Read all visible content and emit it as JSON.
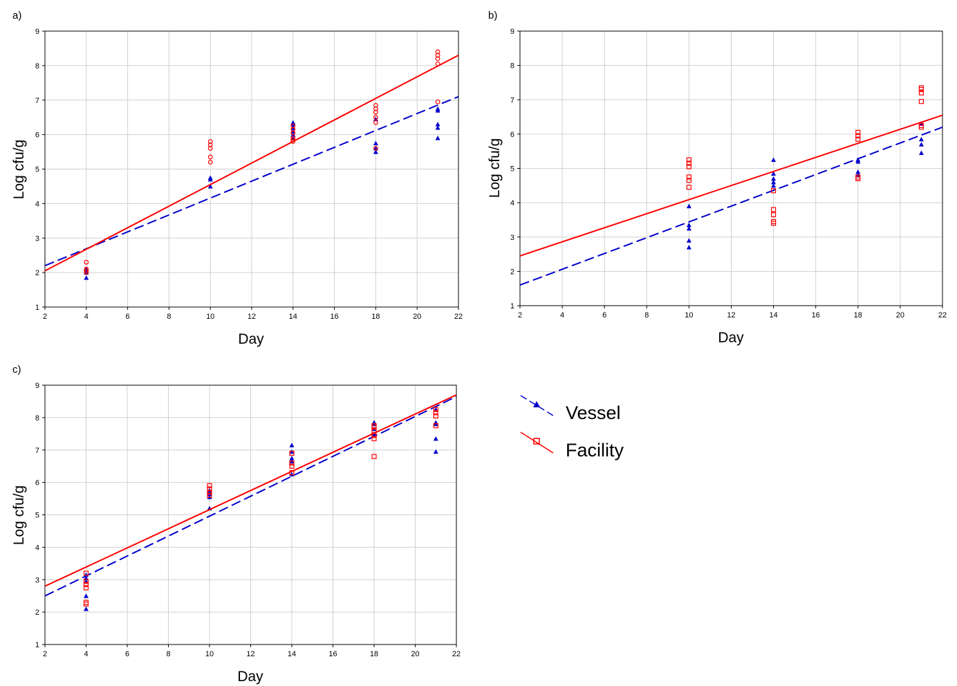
{
  "legend": {
    "vessel": {
      "label": "Vessel",
      "color": "#0000cc"
    },
    "facility": {
      "label": "Facility",
      "color": "#ff0000"
    }
  },
  "chart_data": [
    {
      "type": "scatter",
      "panel_label": "a)",
      "xlabel": "Day",
      "ylabel": "Log cfu/g",
      "xlim": [
        2,
        22
      ],
      "ylim": [
        1,
        9
      ],
      "xticks": [
        2,
        4,
        6,
        8,
        10,
        12,
        14,
        16,
        18,
        20,
        22
      ],
      "yticks": [
        1,
        2,
        3,
        4,
        5,
        6,
        7,
        8,
        9
      ],
      "grid": true,
      "series": [
        {
          "name": "Vessel",
          "marker": "triangle",
          "points": [
            [
              4,
              1.85
            ],
            [
              4,
              2.0
            ],
            [
              4,
              2.05
            ],
            [
              4,
              2.1
            ],
            [
              10,
              4.5
            ],
            [
              10,
              4.7
            ],
            [
              10,
              4.75
            ],
            [
              14,
              5.9
            ],
            [
              14,
              6.0
            ],
            [
              14,
              6.1
            ],
            [
              14,
              6.2
            ],
            [
              14,
              6.3
            ],
            [
              14,
              6.35
            ],
            [
              18,
              5.5
            ],
            [
              18,
              5.6
            ],
            [
              18,
              5.75
            ],
            [
              18,
              6.45
            ],
            [
              21,
              5.9
            ],
            [
              21,
              6.2
            ],
            [
              21,
              6.3
            ],
            [
              21,
              6.7
            ],
            [
              21,
              6.75
            ]
          ],
          "fit": {
            "x": [
              2,
              22
            ],
            "y": [
              2.2,
              7.1
            ]
          }
        },
        {
          "name": "Facility",
          "marker": "circle",
          "points": [
            [
              4,
              2.0
            ],
            [
              4,
              2.05
            ],
            [
              4,
              2.1
            ],
            [
              4,
              2.3
            ],
            [
              10,
              5.2
            ],
            [
              10,
              5.35
            ],
            [
              10,
              5.6
            ],
            [
              10,
              5.7
            ],
            [
              10,
              5.8
            ],
            [
              14,
              5.8
            ],
            [
              14,
              5.85
            ],
            [
              14,
              5.9
            ],
            [
              14,
              6.05
            ],
            [
              14,
              6.15
            ],
            [
              14,
              6.25
            ],
            [
              18,
              5.6
            ],
            [
              18,
              6.35
            ],
            [
              18,
              6.5
            ],
            [
              18,
              6.65
            ],
            [
              18,
              6.75
            ],
            [
              18,
              6.85
            ],
            [
              21,
              6.95
            ],
            [
              21,
              8.05
            ],
            [
              21,
              8.2
            ],
            [
              21,
              8.3
            ],
            [
              21,
              8.4
            ]
          ],
          "fit": {
            "x": [
              2,
              22
            ],
            "y": [
              2.05,
              8.3
            ]
          }
        }
      ]
    },
    {
      "type": "scatter",
      "panel_label": "b)",
      "xlabel": "Day",
      "ylabel": "Log cfu/g",
      "xlim": [
        2,
        22
      ],
      "ylim": [
        1,
        9
      ],
      "xticks": [
        2,
        4,
        6,
        8,
        10,
        12,
        14,
        16,
        18,
        20,
        22
      ],
      "yticks": [
        1,
        2,
        3,
        4,
        5,
        6,
        7,
        8,
        9
      ],
      "grid": true,
      "series": [
        {
          "name": "Vessel",
          "marker": "triangle",
          "points": [
            [
              10,
              2.7
            ],
            [
              10,
              2.9
            ],
            [
              10,
              3.25
            ],
            [
              10,
              3.35
            ],
            [
              10,
              3.9
            ],
            [
              14,
              4.5
            ],
            [
              14,
              4.6
            ],
            [
              14,
              4.7
            ],
            [
              14,
              4.85
            ],
            [
              14,
              5.25
            ],
            [
              18,
              4.8
            ],
            [
              18,
              4.9
            ],
            [
              18,
              5.2
            ],
            [
              18,
              5.25
            ],
            [
              21,
              5.45
            ],
            [
              21,
              5.7
            ],
            [
              21,
              5.85
            ],
            [
              21,
              6.3
            ]
          ],
          "fit": {
            "x": [
              2,
              22
            ],
            "y": [
              1.6,
              6.2
            ]
          }
        },
        {
          "name": "Facility",
          "marker": "square",
          "points": [
            [
              10,
              4.45
            ],
            [
              10,
              4.65
            ],
            [
              10,
              4.75
            ],
            [
              10,
              5.05
            ],
            [
              10,
              5.15
            ],
            [
              10,
              5.25
            ],
            [
              14,
              3.4
            ],
            [
              14,
              3.45
            ],
            [
              14,
              3.65
            ],
            [
              14,
              3.8
            ],
            [
              14,
              4.35
            ],
            [
              18,
              4.7
            ],
            [
              18,
              4.75
            ],
            [
              18,
              5.85
            ],
            [
              18,
              5.95
            ],
            [
              18,
              6.05
            ],
            [
              21,
              6.2
            ],
            [
              21,
              6.25
            ],
            [
              21,
              6.95
            ],
            [
              21,
              7.2
            ],
            [
              21,
              7.3
            ],
            [
              21,
              7.35
            ]
          ],
          "fit": {
            "x": [
              2,
              22
            ],
            "y": [
              2.45,
              6.55
            ]
          }
        }
      ]
    },
    {
      "type": "scatter",
      "panel_label": "c)",
      "xlabel": "Day",
      "ylabel": "Log cfu/g",
      "xlim": [
        2,
        22
      ],
      "ylim": [
        1,
        9
      ],
      "xticks": [
        2,
        4,
        6,
        8,
        10,
        12,
        14,
        16,
        18,
        20,
        22
      ],
      "yticks": [
        1,
        2,
        3,
        4,
        5,
        6,
        7,
        8,
        9
      ],
      "grid": true,
      "series": [
        {
          "name": "Vessel",
          "marker": "triangle",
          "points": [
            [
              4,
              2.1
            ],
            [
              4,
              2.5
            ],
            [
              4,
              2.95
            ],
            [
              4,
              3.05
            ],
            [
              4,
              3.15
            ],
            [
              10,
              5.2
            ],
            [
              10,
              5.55
            ],
            [
              10,
              5.65
            ],
            [
              10,
              5.75
            ],
            [
              14,
              6.25
            ],
            [
              14,
              6.65
            ],
            [
              14,
              6.75
            ],
            [
              14,
              6.95
            ],
            [
              14,
              7.15
            ],
            [
              18,
              7.5
            ],
            [
              18,
              7.65
            ],
            [
              18,
              7.8
            ],
            [
              18,
              7.85
            ],
            [
              21,
              6.95
            ],
            [
              21,
              7.35
            ],
            [
              21,
              7.8
            ],
            [
              21,
              7.85
            ],
            [
              21,
              8.25
            ]
          ],
          "fit": {
            "x": [
              2,
              22
            ],
            "y": [
              2.5,
              8.65
            ]
          }
        },
        {
          "name": "Facility",
          "marker": "square",
          "points": [
            [
              4,
              2.25
            ],
            [
              4,
              2.3
            ],
            [
              4,
              2.75
            ],
            [
              4,
              2.85
            ],
            [
              4,
              2.95
            ],
            [
              4,
              3.2
            ],
            [
              10,
              5.6
            ],
            [
              10,
              5.7
            ],
            [
              10,
              5.8
            ],
            [
              10,
              5.9
            ],
            [
              14,
              6.3
            ],
            [
              14,
              6.5
            ],
            [
              14,
              6.6
            ],
            [
              14,
              6.9
            ],
            [
              18,
              6.8
            ],
            [
              18,
              7.35
            ],
            [
              18,
              7.45
            ],
            [
              18,
              7.6
            ],
            [
              18,
              7.7
            ],
            [
              18,
              7.75
            ],
            [
              21,
              7.75
            ],
            [
              21,
              8.05
            ],
            [
              21,
              8.15
            ],
            [
              21,
              8.25
            ]
          ],
          "fit": {
            "x": [
              2,
              22
            ],
            "y": [
              2.8,
              8.7
            ]
          }
        }
      ]
    }
  ]
}
